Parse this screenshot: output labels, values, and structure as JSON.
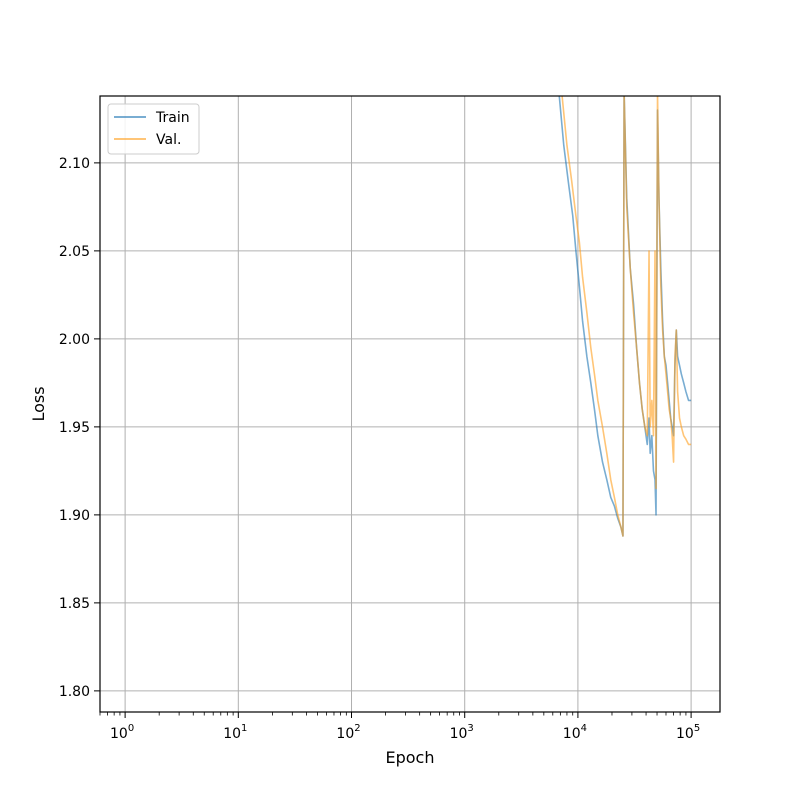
{
  "chart_data": {
    "type": "line",
    "xscale": "log",
    "xlabel": "Epoch",
    "ylabel": "Loss",
    "xlim": [
      0.6,
      180000
    ],
    "ylim": [
      1.788,
      2.138
    ],
    "grid": true,
    "legend_position": "top-left",
    "x_ticks": [
      {
        "value": 1,
        "mantissa": "10",
        "exp": "0"
      },
      {
        "value": 10,
        "mantissa": "10",
        "exp": "1"
      },
      {
        "value": 100,
        "mantissa": "10",
        "exp": "2"
      },
      {
        "value": 1000,
        "mantissa": "10",
        "exp": "3"
      },
      {
        "value": 10000,
        "mantissa": "10",
        "exp": "4"
      },
      {
        "value": 100000,
        "mantissa": "10",
        "exp": "5"
      }
    ],
    "y_ticks": [
      {
        "value": 1.8,
        "label": "1.80"
      },
      {
        "value": 1.85,
        "label": "1.85"
      },
      {
        "value": 1.9,
        "label": "1.90"
      },
      {
        "value": 1.95,
        "label": "1.95"
      },
      {
        "value": 2.0,
        "label": "2.00"
      },
      {
        "value": 2.05,
        "label": "2.05"
      },
      {
        "value": 2.1,
        "label": "2.10"
      }
    ],
    "series": [
      {
        "name": "Train",
        "color": "#1f77b4",
        "points": [
          [
            6800,
            2.14
          ],
          [
            7500,
            2.11
          ],
          [
            8200,
            2.09
          ],
          [
            9000,
            2.07
          ],
          [
            9600,
            2.05
          ],
          [
            10300,
            2.03
          ],
          [
            11000,
            2.01
          ],
          [
            12000,
            1.99
          ],
          [
            13000,
            1.975
          ],
          [
            14000,
            1.96
          ],
          [
            15000,
            1.945
          ],
          [
            16500,
            1.93
          ],
          [
            18000,
            1.92
          ],
          [
            19500,
            1.91
          ],
          [
            21000,
            1.905
          ],
          [
            22500,
            1.898
          ],
          [
            24000,
            1.893
          ],
          [
            25000,
            1.888
          ],
          [
            25600,
            2.14
          ],
          [
            27000,
            2.08
          ],
          [
            29000,
            2.04
          ],
          [
            31000,
            2.02
          ],
          [
            33000,
            1.995
          ],
          [
            35000,
            1.975
          ],
          [
            37000,
            1.96
          ],
          [
            39000,
            1.95
          ],
          [
            41000,
            1.94
          ],
          [
            42500,
            1.955
          ],
          [
            43500,
            1.935
          ],
          [
            45000,
            1.945
          ],
          [
            46500,
            1.925
          ],
          [
            48000,
            1.92
          ],
          [
            49000,
            1.9
          ],
          [
            50500,
            2.13
          ],
          [
            52000,
            2.08
          ],
          [
            54000,
            2.04
          ],
          [
            56000,
            2.01
          ],
          [
            58000,
            1.99
          ],
          [
            60000,
            1.985
          ],
          [
            62000,
            1.975
          ],
          [
            64000,
            1.965
          ],
          [
            66000,
            1.955
          ],
          [
            68000,
            1.95
          ],
          [
            70000,
            1.945
          ],
          [
            72000,
            1.985
          ],
          [
            74000,
            2.005
          ],
          [
            76000,
            1.99
          ],
          [
            79000,
            1.985
          ],
          [
            82000,
            1.98
          ],
          [
            86000,
            1.975
          ],
          [
            90000,
            1.97
          ],
          [
            95000,
            1.965
          ],
          [
            100000,
            1.965
          ]
        ]
      },
      {
        "name": "Val.",
        "color": "#ff9f1c",
        "points": [
          [
            7200,
            2.14
          ],
          [
            8000,
            2.11
          ],
          [
            8800,
            2.09
          ],
          [
            9600,
            2.07
          ],
          [
            10300,
            2.055
          ],
          [
            11000,
            2.035
          ],
          [
            12000,
            2.015
          ],
          [
            13000,
            1.995
          ],
          [
            14000,
            1.98
          ],
          [
            15000,
            1.965
          ],
          [
            16500,
            1.95
          ],
          [
            18000,
            1.935
          ],
          [
            19500,
            1.92
          ],
          [
            21000,
            1.91
          ],
          [
            22500,
            1.9
          ],
          [
            24000,
            1.893
          ],
          [
            25000,
            1.888
          ],
          [
            25600,
            2.14
          ],
          [
            27000,
            2.075
          ],
          [
            29000,
            2.04
          ],
          [
            31000,
            2.015
          ],
          [
            33000,
            1.995
          ],
          [
            35000,
            1.975
          ],
          [
            37000,
            1.96
          ],
          [
            39000,
            1.95
          ],
          [
            41000,
            1.945
          ],
          [
            42500,
            2.05
          ],
          [
            43500,
            1.95
          ],
          [
            45000,
            1.965
          ],
          [
            46500,
            1.945
          ],
          [
            48000,
            2.05
          ],
          [
            49000,
            1.915
          ],
          [
            50500,
            2.14
          ],
          [
            52000,
            2.08
          ],
          [
            54000,
            2.03
          ],
          [
            56000,
            2.005
          ],
          [
            58000,
            1.99
          ],
          [
            60000,
            1.98
          ],
          [
            62000,
            1.97
          ],
          [
            64000,
            1.96
          ],
          [
            66000,
            1.955
          ],
          [
            68000,
            1.945
          ],
          [
            70000,
            1.93
          ],
          [
            72000,
            1.99
          ],
          [
            74000,
            2.005
          ],
          [
            76000,
            1.97
          ],
          [
            79000,
            1.955
          ],
          [
            82000,
            1.95
          ],
          [
            86000,
            1.945
          ],
          [
            90000,
            1.943
          ],
          [
            95000,
            1.94
          ],
          [
            100000,
            1.94
          ]
        ]
      }
    ]
  }
}
